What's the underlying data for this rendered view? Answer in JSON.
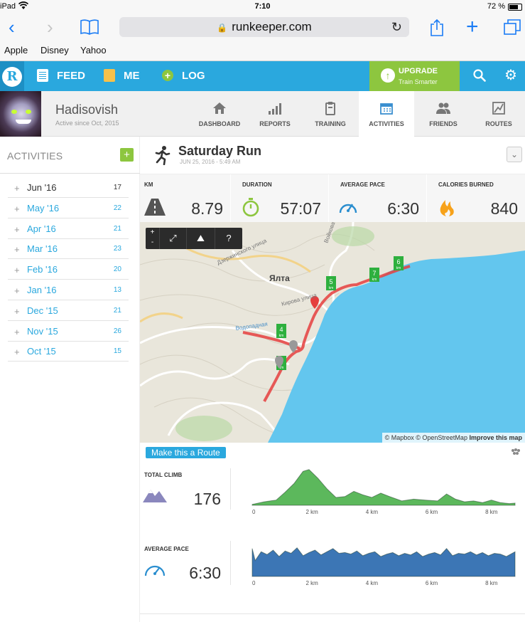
{
  "status_bar": {
    "device": "iPad",
    "time": "7:10",
    "battery": "72 %"
  },
  "browser": {
    "url": "runkeeper.com",
    "favorites": [
      "Apple",
      "Disney",
      "Yahoo"
    ]
  },
  "nav": {
    "items": [
      {
        "label": "FEED",
        "icon": "feed-icon"
      },
      {
        "label": "ME",
        "icon": "me-icon"
      },
      {
        "label": "LOG",
        "icon": "log-icon"
      }
    ],
    "upgrade_title": "UPGRADE",
    "upgrade_sub": "Train Smarter",
    "colors": {
      "brand": "#2aa8de",
      "upgrade": "#8dc63f"
    }
  },
  "profile": {
    "name": "Hadisovish",
    "since": "Active since Oct, 2015",
    "tabs": [
      {
        "label": "DASHBOARD",
        "icon": "home-icon"
      },
      {
        "label": "REPORTS",
        "icon": "bar-chart-icon"
      },
      {
        "label": "TRAINING",
        "icon": "clipboard-icon"
      },
      {
        "label": "ACTIVITIES",
        "icon": "calendar-icon",
        "active": true
      },
      {
        "label": "FRIENDS",
        "icon": "people-icon"
      },
      {
        "label": "ROUTES",
        "icon": "map-icon"
      }
    ]
  },
  "sidebar": {
    "title": "ACTIVITIES",
    "add": "+",
    "months": [
      {
        "label": "Jun '16",
        "count": "17",
        "highlight": false
      },
      {
        "label": "May '16",
        "count": "22",
        "highlight": true
      },
      {
        "label": "Apr '16",
        "count": "21",
        "highlight": true
      },
      {
        "label": "Mar '16",
        "count": "23",
        "highlight": true
      },
      {
        "label": "Feb '16",
        "count": "20",
        "highlight": true
      },
      {
        "label": "Jan '16",
        "count": "13",
        "highlight": true
      },
      {
        "label": "Dec '15",
        "count": "21",
        "highlight": true
      },
      {
        "label": "Nov '15",
        "count": "26",
        "highlight": true
      },
      {
        "label": "Oct '15",
        "count": "15",
        "highlight": true
      }
    ]
  },
  "activity": {
    "title": "Saturday Run",
    "date": "JUN 25, 2016",
    "time": "5:49 AM",
    "stats": [
      {
        "label": "KM",
        "value": "8.79",
        "icon": "road-icon"
      },
      {
        "label": "DURATION",
        "value": "57:07",
        "icon": "stopwatch-icon"
      },
      {
        "label": "AVERAGE PACE",
        "value": "6:30",
        "icon": "speedometer-icon"
      },
      {
        "label": "CALORIES BURNED",
        "value": "840",
        "icon": "flame-icon"
      }
    ]
  },
  "map": {
    "city_label": "Ялта",
    "street_labels": [
      "Кирова улица",
      "Войкова",
      "Дзержинского улица",
      "Водопадная"
    ],
    "zoom_in": "+",
    "zoom_out": "-",
    "help": "?",
    "km_markers": [
      "1",
      "4",
      "5",
      "6",
      "7"
    ],
    "km_unit": "km",
    "attribution": "© Mapbox © OpenStreetMap",
    "improve": "Improve this map"
  },
  "route_button": "Make this a Route",
  "climb": {
    "label": "TOTAL CLIMB",
    "value": "176",
    "icon": "mountain-icon"
  },
  "pace": {
    "label": "AVERAGE PACE",
    "value": "6:30",
    "icon": "speedometer-icon"
  },
  "chart_data": [
    {
      "type": "area",
      "x_ticks": [
        "0",
        "2 km",
        "4 km",
        "6 km",
        "8 km"
      ],
      "x": [
        0,
        0.4,
        0.8,
        1.1,
        1.4,
        1.7,
        1.9,
        2.2,
        2.5,
        2.8,
        3.1,
        3.4,
        3.7,
        4.0,
        4.3,
        4.6,
        5.0,
        5.4,
        5.8,
        6.2,
        6.5,
        6.8,
        7.1,
        7.4,
        7.7,
        8.0,
        8.3,
        8.6,
        8.79
      ],
      "y": [
        2,
        8,
        12,
        30,
        50,
        78,
        82,
        62,
        38,
        18,
        20,
        32,
        24,
        18,
        28,
        20,
        10,
        14,
        12,
        10,
        26,
        14,
        8,
        10,
        6,
        12,
        6,
        4,
        5
      ],
      "color": "#5cb85c",
      "xlim": [
        0,
        8.79
      ]
    },
    {
      "type": "area",
      "x_ticks": [
        "0",
        "2 km",
        "4 km",
        "6 km",
        "8 km"
      ],
      "x": [
        0,
        0.1,
        0.3,
        0.5,
        0.7,
        0.9,
        1.1,
        1.3,
        1.5,
        1.7,
        1.9,
        2.1,
        2.3,
        2.5,
        2.7,
        2.9,
        3.1,
        3.3,
        3.5,
        3.7,
        3.9,
        4.1,
        4.3,
        4.5,
        4.7,
        4.9,
        5.1,
        5.3,
        5.5,
        5.7,
        5.9,
        6.1,
        6.3,
        6.5,
        6.7,
        6.9,
        7.1,
        7.3,
        7.5,
        7.7,
        7.9,
        8.1,
        8.3,
        8.5,
        8.79
      ],
      "y": [
        70,
        40,
        62,
        55,
        66,
        50,
        64,
        58,
        72,
        52,
        60,
        66,
        54,
        62,
        70,
        58,
        60,
        56,
        64,
        52,
        58,
        62,
        50,
        56,
        60,
        52,
        58,
        54,
        62,
        50,
        56,
        60,
        54,
        70,
        52,
        58,
        56,
        62,
        54,
        60,
        52,
        58,
        56,
        50,
        62
      ],
      "color": "#3c76b5",
      "xlim": [
        0,
        8.79
      ]
    }
  ]
}
